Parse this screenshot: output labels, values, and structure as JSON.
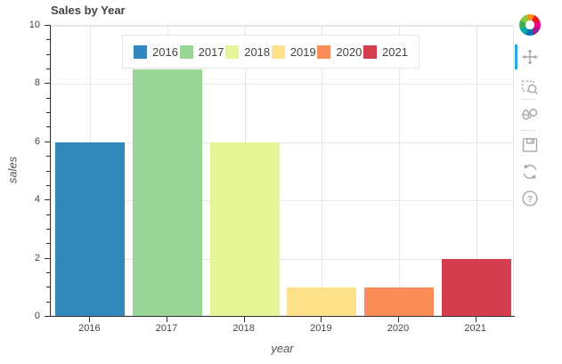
{
  "chart_data": {
    "type": "bar",
    "title": "Sales by Year",
    "categories": [
      "2016",
      "2017",
      "2018",
      "2019",
      "2020",
      "2021"
    ],
    "values": [
      6,
      8.5,
      6,
      1,
      1,
      2
    ],
    "bar_colors": [
      "#3288bd",
      "#99d594",
      "#e6f598",
      "#fee08b",
      "#fc8d59",
      "#d53e4f"
    ],
    "xlabel": "year",
    "ylabel": "sales",
    "ylim": [
      0,
      10
    ],
    "y_major_ticks": [
      0,
      2,
      4,
      6,
      8,
      10
    ],
    "y_minor_tick_step": 0.5,
    "bar_width_ratio": 0.9,
    "grid": true,
    "legend_position": "top-center"
  },
  "legend": {
    "entries": [
      {
        "label": "2016",
        "color": "#3288bd"
      },
      {
        "label": "2017",
        "color": "#99d594"
      },
      {
        "label": "2018",
        "color": "#e6f598"
      },
      {
        "label": "2019",
        "color": "#fee08b"
      },
      {
        "label": "2020",
        "color": "#fc8d59"
      },
      {
        "label": "2021",
        "color": "#d53e4f"
      }
    ]
  },
  "toolbar": {
    "active_tool": "pan",
    "active_indicator_color": "#26aae1",
    "icon_color": "#a6a6ad",
    "help_glyph": "?",
    "tools": [
      "pan",
      "box_zoom",
      "wheel_zoom",
      "save",
      "reset",
      "help"
    ],
    "logo_colors": [
      "#f7941e",
      "#ed1c24",
      "#ec008c",
      "#92278f",
      "#0072bc",
      "#00aeae",
      "#39b54a",
      "#8dc63f"
    ]
  },
  "colors": {
    "grid": "#e6e6e6",
    "outline": "#e5e5e5",
    "axis": "#333333",
    "text": "#444444"
  }
}
